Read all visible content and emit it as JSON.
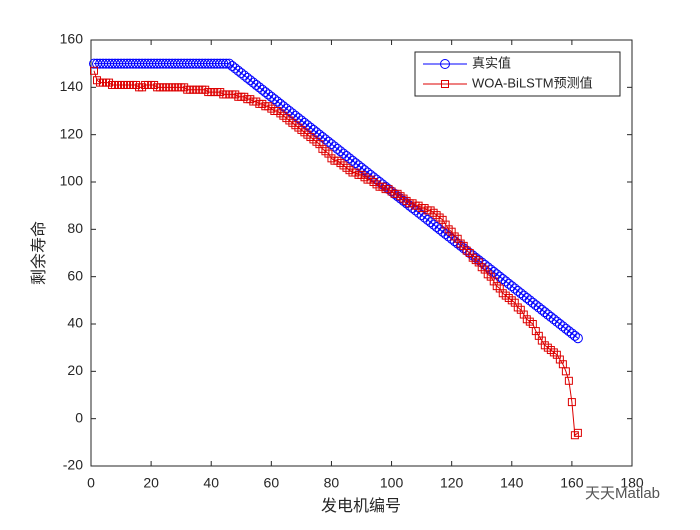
{
  "chart_data": {
    "type": "line",
    "xlabel": "发电机编号",
    "ylabel": "剩余寿命",
    "watermark": "天天Matlab",
    "xlim": [
      0,
      180
    ],
    "xticks": [
      0,
      20,
      40,
      60,
      80,
      100,
      120,
      140,
      160,
      180
    ],
    "ylim": [
      -20,
      160
    ],
    "yticks": [
      -20,
      0,
      20,
      40,
      60,
      80,
      100,
      120,
      140,
      160
    ],
    "legend": "upper right",
    "x": [
      1,
      2,
      3,
      4,
      5,
      6,
      7,
      8,
      9,
      10,
      11,
      12,
      13,
      14,
      15,
      16,
      17,
      18,
      19,
      20,
      21,
      22,
      23,
      24,
      25,
      26,
      27,
      28,
      29,
      30,
      31,
      32,
      33,
      34,
      35,
      36,
      37,
      38,
      39,
      40,
      41,
      42,
      43,
      44,
      45,
      46,
      47,
      48,
      49,
      50,
      51,
      52,
      53,
      54,
      55,
      56,
      57,
      58,
      59,
      60,
      61,
      62,
      63,
      64,
      65,
      66,
      67,
      68,
      69,
      70,
      71,
      72,
      73,
      74,
      75,
      76,
      77,
      78,
      79,
      80,
      81,
      82,
      83,
      84,
      85,
      86,
      87,
      88,
      89,
      90,
      91,
      92,
      93,
      94,
      95,
      96,
      97,
      98,
      99,
      100,
      101,
      102,
      103,
      104,
      105,
      106,
      107,
      108,
      109,
      110,
      111,
      112,
      113,
      114,
      115,
      116,
      117,
      118,
      119,
      120,
      121,
      122,
      123,
      124,
      125,
      126,
      127,
      128,
      129,
      130,
      131,
      132,
      133,
      134,
      135,
      136,
      137,
      138,
      139,
      140,
      141,
      142,
      143,
      144,
      145,
      146,
      147,
      148,
      149,
      150,
      151,
      152,
      153,
      154,
      155,
      156,
      157,
      158,
      159,
      160,
      161,
      162
    ],
    "series": [
      {
        "name": "真实值",
        "color": "#0000ff",
        "marker": "circle",
        "values": [
          150,
          150,
          150,
          150,
          150,
          150,
          150,
          150,
          150,
          150,
          150,
          150,
          150,
          150,
          150,
          150,
          150,
          150,
          150,
          150,
          150,
          150,
          150,
          150,
          150,
          150,
          150,
          150,
          150,
          150,
          150,
          150,
          150,
          150,
          150,
          150,
          150,
          150,
          150,
          150,
          150,
          150,
          150,
          150,
          150,
          150,
          149,
          148,
          147,
          146,
          145,
          144,
          143,
          142,
          141,
          140,
          139,
          138,
          137,
          136,
          135,
          134,
          133,
          132,
          131,
          130,
          129,
          128,
          127,
          126,
          125,
          124,
          123,
          122,
          121,
          120,
          119,
          118,
          117,
          116,
          115,
          114,
          113,
          112,
          111,
          110,
          109,
          108,
          107,
          106,
          105,
          104,
          103,
          102,
          101,
          100,
          99,
          98,
          97,
          96,
          95,
          94,
          93,
          92,
          91,
          90,
          89,
          88,
          87,
          86,
          85,
          84,
          83,
          82,
          81,
          80,
          79,
          78,
          77,
          76,
          75,
          74,
          73,
          72,
          71,
          70,
          69,
          68,
          67,
          66,
          65,
          64,
          63,
          62,
          61,
          60,
          59,
          58,
          57,
          56,
          55,
          54,
          53,
          52,
          51,
          50,
          49,
          48,
          47,
          46,
          45,
          44,
          43,
          42,
          41,
          40,
          39,
          38,
          37,
          36,
          35,
          34
        ]
      },
      {
        "name": "WOA-BiLSTM预测值",
        "color": "#dd0000",
        "marker": "square",
        "values": [
          147,
          143,
          142,
          142,
          142,
          142,
          141,
          141,
          141,
          141,
          141,
          141,
          141,
          141,
          141,
          140,
          140,
          141,
          141,
          141,
          141,
          140,
          140,
          140,
          140,
          140,
          140,
          140,
          140,
          140,
          140,
          139,
          139,
          139,
          139,
          139,
          139,
          139,
          138,
          138,
          138,
          138,
          138,
          137,
          137,
          137,
          137,
          137,
          136,
          136,
          136,
          135,
          135,
          134,
          134,
          133,
          133,
          132,
          132,
          131,
          130,
          130,
          129,
          128,
          127,
          126,
          125,
          124,
          123,
          122,
          121,
          120,
          119,
          118,
          117,
          116,
          114,
          113,
          112,
          110,
          109,
          109,
          108,
          107,
          106,
          105,
          104,
          104,
          103,
          103,
          102,
          101,
          101,
          100,
          99,
          98,
          98,
          97,
          97,
          96,
          95,
          95,
          94,
          93,
          92,
          91,
          91,
          90,
          90,
          89,
          89,
          88,
          88,
          87,
          86,
          85,
          84,
          82,
          80,
          79,
          77,
          76,
          74,
          73,
          71,
          70,
          68,
          67,
          66,
          64,
          63,
          61,
          60,
          58,
          56,
          55,
          53,
          52,
          51,
          50,
          49,
          47,
          46,
          44,
          42,
          41,
          40,
          37,
          35,
          33,
          31,
          30,
          29,
          28,
          27,
          25,
          23,
          20,
          16,
          7,
          -7,
          -6
        ]
      }
    ]
  }
}
